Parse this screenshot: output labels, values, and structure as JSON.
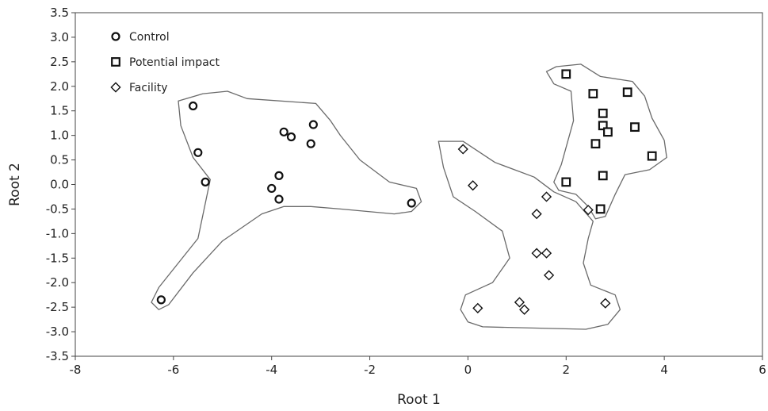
{
  "chart_data": {
    "type": "scatter",
    "xlabel": "Root 1",
    "ylabel": "Root 2",
    "xlim": [
      -8,
      6
    ],
    "ylim": [
      -3.5,
      3.5
    ],
    "x_ticks": [
      "-8",
      "-6",
      "-4",
      "-2",
      "0",
      "2",
      "4",
      "6"
    ],
    "y_ticks": [
      "3.5",
      "3.0",
      "2.5",
      "2.0",
      "1.5",
      "1.0",
      "0.5",
      "0.0",
      "-0.5",
      "-1.0",
      "-1.5",
      "-2.0",
      "-2.5",
      "-3.0",
      "-3.5"
    ],
    "grid": false,
    "legend_position": "top-left",
    "series": [
      {
        "name": "Control",
        "marker": "circle",
        "points": [
          [
            -5.6,
            1.6
          ],
          [
            -5.5,
            0.65
          ],
          [
            -5.35,
            0.05
          ],
          [
            -6.25,
            -2.35
          ],
          [
            -3.75,
            1.07
          ],
          [
            -3.6,
            0.97
          ],
          [
            -3.15,
            1.22
          ],
          [
            -3.2,
            0.83
          ],
          [
            -3.85,
            0.18
          ],
          [
            -4.0,
            -0.08
          ],
          [
            -3.85,
            -0.3
          ],
          [
            -1.15,
            -0.38
          ]
        ]
      },
      {
        "name": "Potential impact",
        "marker": "square",
        "points": [
          [
            2.0,
            2.25
          ],
          [
            2.55,
            1.85
          ],
          [
            3.25,
            1.88
          ],
          [
            2.75,
            1.45
          ],
          [
            2.75,
            1.2
          ],
          [
            2.85,
            1.07
          ],
          [
            3.4,
            1.17
          ],
          [
            2.6,
            0.83
          ],
          [
            3.75,
            0.58
          ],
          [
            2.75,
            0.18
          ],
          [
            2.0,
            0.05
          ],
          [
            2.7,
            -0.5
          ]
        ]
      },
      {
        "name": "Facility",
        "marker": "diamond",
        "points": [
          [
            -0.1,
            0.72
          ],
          [
            0.1,
            -0.02
          ],
          [
            1.6,
            -0.25
          ],
          [
            1.4,
            -0.6
          ],
          [
            2.45,
            -0.52
          ],
          [
            1.4,
            -1.4
          ],
          [
            1.6,
            -1.4
          ],
          [
            1.65,
            -1.85
          ],
          [
            1.05,
            -2.4
          ],
          [
            1.15,
            -2.55
          ],
          [
            0.2,
            -2.52
          ],
          [
            2.8,
            -2.42
          ]
        ]
      }
    ]
  }
}
